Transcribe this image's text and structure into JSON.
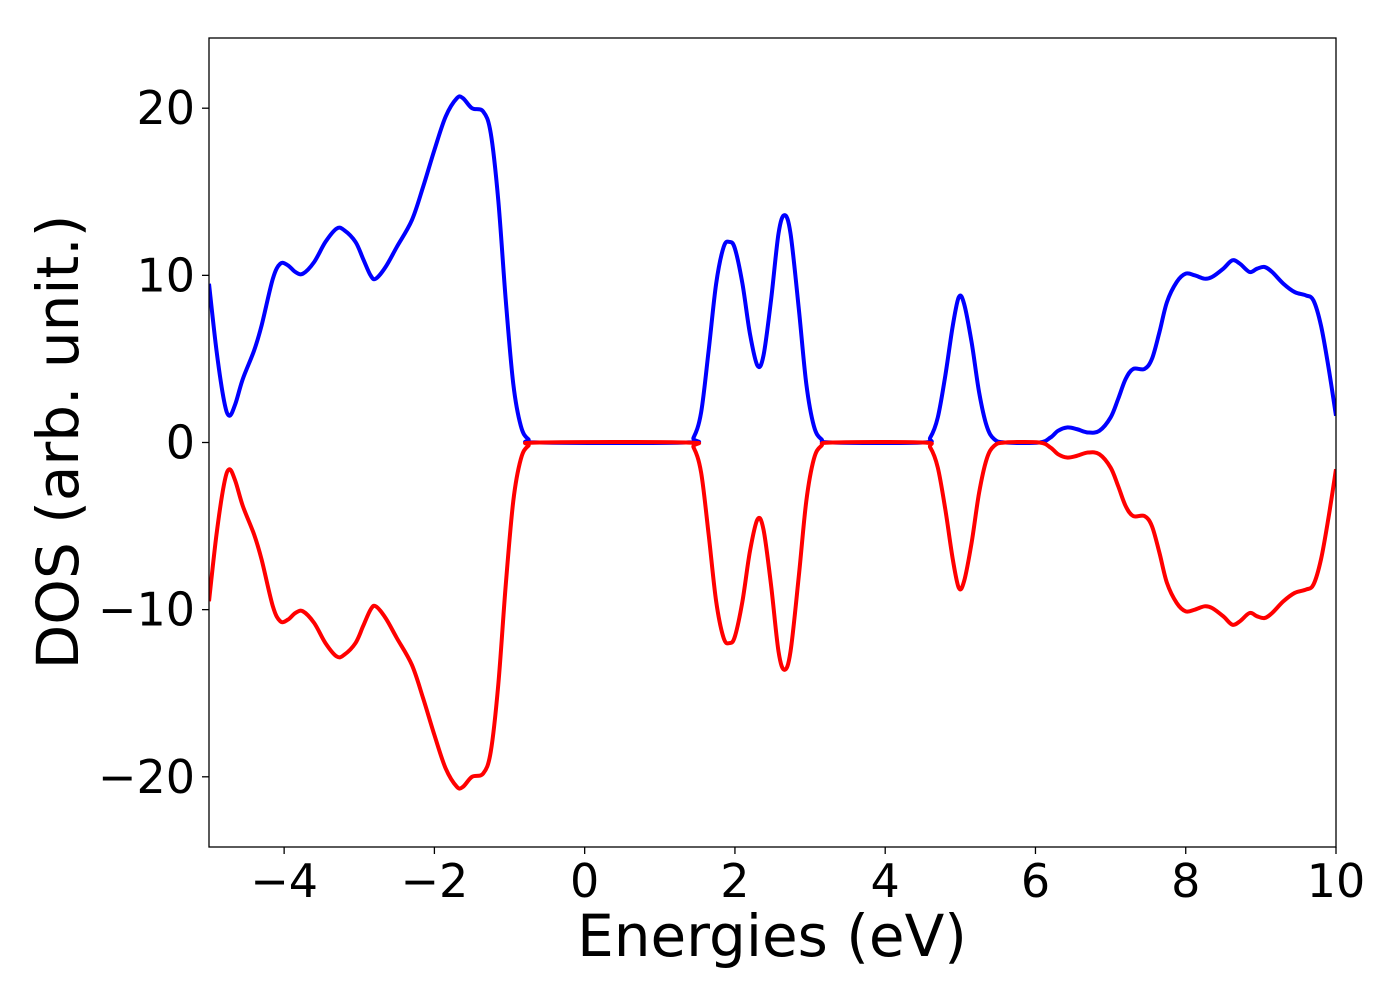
{
  "chart_data": {
    "type": "line",
    "title": "",
    "xlabel": "Energies (eV)",
    "ylabel": "DOS (arb. unit.)",
    "xlim": [
      -5,
      10
    ],
    "ylim": [
      -24.2,
      24.2
    ],
    "xticks": [
      -4,
      -2,
      0,
      2,
      4,
      6,
      8,
      10
    ],
    "xtick_labels": [
      "−4",
      "−2",
      "0",
      "2",
      "4",
      "6",
      "8",
      "10"
    ],
    "yticks": [
      -20,
      -10,
      0,
      10,
      20
    ],
    "ytick_labels": [
      "−20",
      "−10",
      "0",
      "10",
      "20"
    ],
    "grid": false,
    "legend": "none",
    "series": [
      {
        "color": "#0000ff",
        "points": [
          [
            -5.0,
            9.5
          ],
          [
            -4.9,
            5.5
          ],
          [
            -4.8,
            2.5
          ],
          [
            -4.73,
            1.6
          ],
          [
            -4.65,
            2.3
          ],
          [
            -4.55,
            3.8
          ],
          [
            -4.4,
            5.5
          ],
          [
            -4.3,
            7.0
          ],
          [
            -4.15,
            9.8
          ],
          [
            -4.05,
            10.7
          ],
          [
            -3.95,
            10.6
          ],
          [
            -3.85,
            10.2
          ],
          [
            -3.75,
            10.1
          ],
          [
            -3.6,
            10.8
          ],
          [
            -3.45,
            12.0
          ],
          [
            -3.3,
            12.8
          ],
          [
            -3.2,
            12.7
          ],
          [
            -3.05,
            12.0
          ],
          [
            -2.95,
            11.0
          ],
          [
            -2.85,
            10.0
          ],
          [
            -2.78,
            9.8
          ],
          [
            -2.65,
            10.5
          ],
          [
            -2.5,
            11.7
          ],
          [
            -2.3,
            13.3
          ],
          [
            -2.15,
            15.3
          ],
          [
            -2.0,
            17.5
          ],
          [
            -1.85,
            19.5
          ],
          [
            -1.7,
            20.6
          ],
          [
            -1.62,
            20.6
          ],
          [
            -1.5,
            20.0
          ],
          [
            -1.35,
            19.8
          ],
          [
            -1.25,
            18.5
          ],
          [
            -1.15,
            14.5
          ],
          [
            -1.05,
            8.5
          ],
          [
            -0.95,
            3.5
          ],
          [
            -0.85,
            1.0
          ],
          [
            -0.75,
            0.2
          ],
          [
            -0.6,
            0.0
          ],
          [
            1.35,
            0.0
          ],
          [
            1.45,
            0.3
          ],
          [
            1.55,
            1.8
          ],
          [
            1.65,
            5.5
          ],
          [
            1.75,
            9.5
          ],
          [
            1.85,
            11.7
          ],
          [
            1.93,
            12.0
          ],
          [
            2.0,
            11.6
          ],
          [
            2.1,
            9.5
          ],
          [
            2.2,
            6.5
          ],
          [
            2.3,
            4.6
          ],
          [
            2.38,
            5.2
          ],
          [
            2.48,
            8.5
          ],
          [
            2.58,
            12.5
          ],
          [
            2.66,
            13.6
          ],
          [
            2.74,
            12.5
          ],
          [
            2.85,
            8.0
          ],
          [
            2.95,
            3.5
          ],
          [
            3.05,
            1.0
          ],
          [
            3.15,
            0.2
          ],
          [
            3.3,
            0.0
          ],
          [
            4.5,
            0.0
          ],
          [
            4.6,
            0.3
          ],
          [
            4.7,
            1.5
          ],
          [
            4.8,
            4.0
          ],
          [
            4.9,
            7.0
          ],
          [
            4.98,
            8.7
          ],
          [
            5.05,
            8.3
          ],
          [
            5.15,
            6.0
          ],
          [
            5.25,
            3.0
          ],
          [
            5.35,
            1.0
          ],
          [
            5.45,
            0.2
          ],
          [
            5.6,
            0.0
          ],
          [
            6.05,
            0.0
          ],
          [
            6.2,
            0.3
          ],
          [
            6.3,
            0.7
          ],
          [
            6.42,
            0.9
          ],
          [
            6.55,
            0.8
          ],
          [
            6.7,
            0.6
          ],
          [
            6.85,
            0.7
          ],
          [
            7.0,
            1.5
          ],
          [
            7.1,
            2.6
          ],
          [
            7.2,
            3.8
          ],
          [
            7.3,
            4.4
          ],
          [
            7.45,
            4.4
          ],
          [
            7.55,
            5.0
          ],
          [
            7.65,
            6.6
          ],
          [
            7.75,
            8.4
          ],
          [
            7.88,
            9.6
          ],
          [
            8.0,
            10.1
          ],
          [
            8.12,
            10.0
          ],
          [
            8.25,
            9.8
          ],
          [
            8.35,
            9.9
          ],
          [
            8.5,
            10.4
          ],
          [
            8.62,
            10.9
          ],
          [
            8.72,
            10.7
          ],
          [
            8.85,
            10.2
          ],
          [
            8.95,
            10.4
          ],
          [
            9.05,
            10.5
          ],
          [
            9.15,
            10.2
          ],
          [
            9.3,
            9.5
          ],
          [
            9.45,
            9.0
          ],
          [
            9.6,
            8.8
          ],
          [
            9.7,
            8.5
          ],
          [
            9.8,
            7.0
          ],
          [
            9.9,
            4.5
          ],
          [
            10.0,
            1.6
          ]
        ]
      },
      {
        "color": "#ff0000",
        "points": [
          [
            -5.0,
            -9.5
          ],
          [
            -4.9,
            -5.5
          ],
          [
            -4.8,
            -2.5
          ],
          [
            -4.73,
            -1.6
          ],
          [
            -4.65,
            -2.3
          ],
          [
            -4.55,
            -3.8
          ],
          [
            -4.4,
            -5.5
          ],
          [
            -4.3,
            -7.0
          ],
          [
            -4.15,
            -9.8
          ],
          [
            -4.05,
            -10.7
          ],
          [
            -3.95,
            -10.6
          ],
          [
            -3.85,
            -10.2
          ],
          [
            -3.75,
            -10.1
          ],
          [
            -3.6,
            -10.8
          ],
          [
            -3.45,
            -12.0
          ],
          [
            -3.3,
            -12.8
          ],
          [
            -3.2,
            -12.7
          ],
          [
            -3.05,
            -12.0
          ],
          [
            -2.95,
            -11.0
          ],
          [
            -2.85,
            -10.0
          ],
          [
            -2.78,
            -9.8
          ],
          [
            -2.65,
            -10.5
          ],
          [
            -2.5,
            -11.7
          ],
          [
            -2.3,
            -13.3
          ],
          [
            -2.15,
            -15.3
          ],
          [
            -2.0,
            -17.5
          ],
          [
            -1.85,
            -19.5
          ],
          [
            -1.7,
            -20.6
          ],
          [
            -1.62,
            -20.6
          ],
          [
            -1.5,
            -20.0
          ],
          [
            -1.35,
            -19.8
          ],
          [
            -1.25,
            -18.5
          ],
          [
            -1.15,
            -14.5
          ],
          [
            -1.05,
            -8.5
          ],
          [
            -0.95,
            -3.5
          ],
          [
            -0.85,
            -1.0
          ],
          [
            -0.75,
            -0.2
          ],
          [
            -0.6,
            0.0
          ],
          [
            1.35,
            0.0
          ],
          [
            1.45,
            -0.3
          ],
          [
            1.55,
            -1.8
          ],
          [
            1.65,
            -5.5
          ],
          [
            1.75,
            -9.5
          ],
          [
            1.85,
            -11.7
          ],
          [
            1.93,
            -12.0
          ],
          [
            2.0,
            -11.6
          ],
          [
            2.1,
            -9.5
          ],
          [
            2.2,
            -6.5
          ],
          [
            2.3,
            -4.6
          ],
          [
            2.38,
            -5.2
          ],
          [
            2.48,
            -8.5
          ],
          [
            2.58,
            -12.5
          ],
          [
            2.66,
            -13.6
          ],
          [
            2.74,
            -12.5
          ],
          [
            2.85,
            -8.0
          ],
          [
            2.95,
            -3.5
          ],
          [
            3.05,
            -1.0
          ],
          [
            3.15,
            -0.2
          ],
          [
            3.3,
            0.0
          ],
          [
            4.5,
            0.0
          ],
          [
            4.6,
            -0.3
          ],
          [
            4.7,
            -1.5
          ],
          [
            4.8,
            -4.0
          ],
          [
            4.9,
            -7.0
          ],
          [
            4.98,
            -8.7
          ],
          [
            5.05,
            -8.3
          ],
          [
            5.15,
            -6.0
          ],
          [
            5.25,
            -3.0
          ],
          [
            5.35,
            -1.0
          ],
          [
            5.45,
            -0.2
          ],
          [
            5.6,
            0.0
          ],
          [
            6.05,
            0.0
          ],
          [
            6.2,
            -0.3
          ],
          [
            6.3,
            -0.7
          ],
          [
            6.42,
            -0.9
          ],
          [
            6.55,
            -0.8
          ],
          [
            6.7,
            -0.6
          ],
          [
            6.85,
            -0.7
          ],
          [
            7.0,
            -1.5
          ],
          [
            7.1,
            -2.6
          ],
          [
            7.2,
            -3.8
          ],
          [
            7.3,
            -4.4
          ],
          [
            7.45,
            -4.4
          ],
          [
            7.55,
            -5.0
          ],
          [
            7.65,
            -6.6
          ],
          [
            7.75,
            -8.4
          ],
          [
            7.88,
            -9.6
          ],
          [
            8.0,
            -10.1
          ],
          [
            8.12,
            -10.0
          ],
          [
            8.25,
            -9.8
          ],
          [
            8.35,
            -9.9
          ],
          [
            8.5,
            -10.4
          ],
          [
            8.62,
            -10.9
          ],
          [
            8.72,
            -10.7
          ],
          [
            8.85,
            -10.2
          ],
          [
            8.95,
            -10.4
          ],
          [
            9.05,
            -10.5
          ],
          [
            9.15,
            -10.2
          ],
          [
            9.3,
            -9.5
          ],
          [
            9.45,
            -9.0
          ],
          [
            9.6,
            -8.8
          ],
          [
            9.7,
            -8.5
          ],
          [
            9.8,
            -7.0
          ],
          [
            9.9,
            -4.5
          ],
          [
            10.0,
            -1.6
          ]
        ]
      }
    ]
  }
}
